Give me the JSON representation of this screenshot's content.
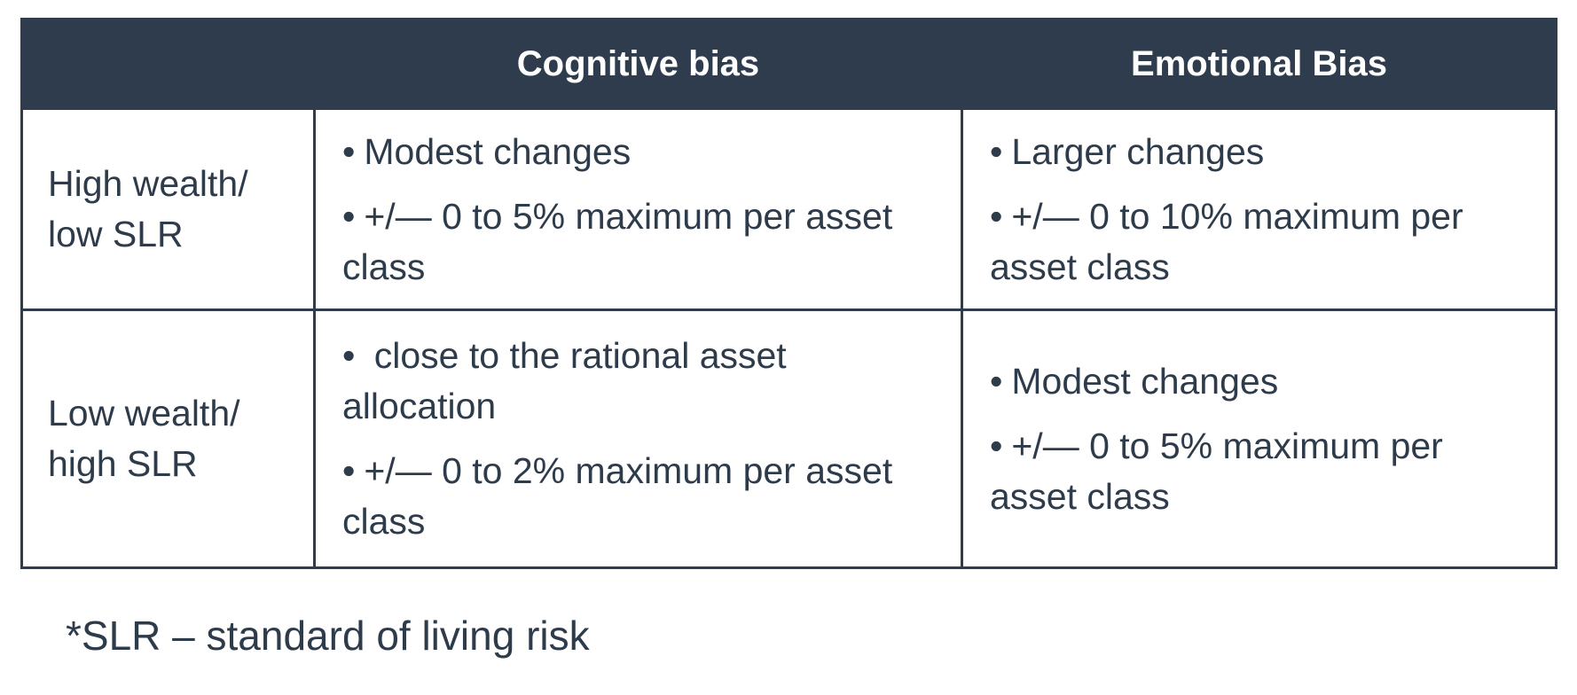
{
  "table": {
    "header": {
      "empty": "",
      "col_cognitive": "Cognitive bias",
      "col_emotional": "Emotional Bias"
    },
    "rows": [
      {
        "label_line1": "High wealth/",
        "label_line2": "low SLR",
        "cognitive": [
          "Modest changes",
          "+/— 0 to 5% maximum per asset class"
        ],
        "emotional": [
          "Larger changes",
          "+/— 0 to 10% maximum per asset class"
        ]
      },
      {
        "label_line1": "Low wealth/",
        "label_line2": "high SLR",
        "cognitive": [
          " close to the rational asset allocation",
          "+/— 0 to 2% maximum per asset class"
        ],
        "emotional": [
          "Modest changes",
          "+/— 0 to 5% maximum per asset class"
        ]
      }
    ]
  },
  "bullet": "•",
  "footnote": "*SLR – standard of living risk"
}
